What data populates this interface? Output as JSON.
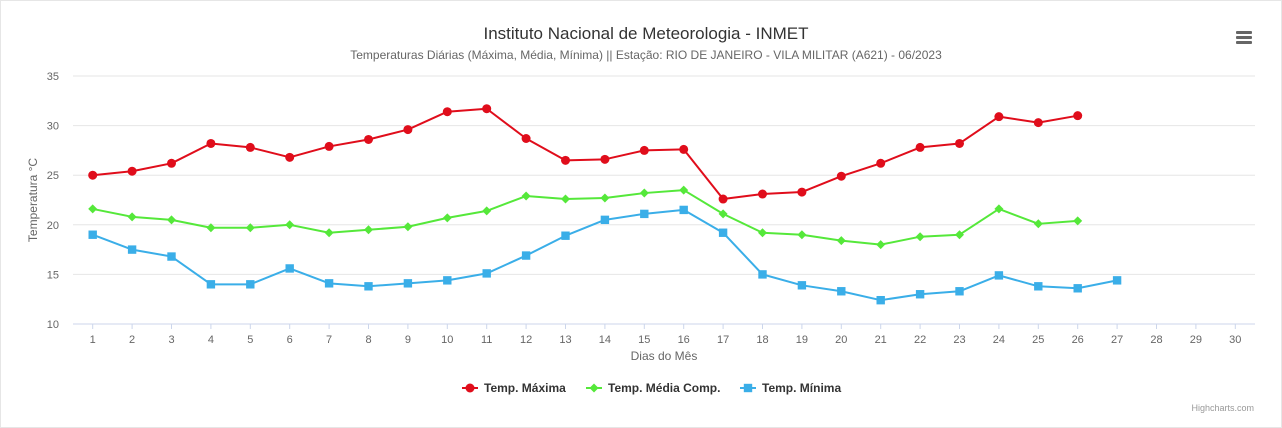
{
  "chart_data": {
    "type": "line",
    "title": "Instituto Nacional de Meteorologia - INMET",
    "subtitle": "Temperaturas Diárias (Máxima, Média, Mínima) || Estação: RIO DE JANEIRO - VILA MILITAR (A621) - 06/2023",
    "xlabel": "Dias do Mês",
    "ylabel": "Temperatura °C",
    "ylim": [
      10,
      35
    ],
    "yticks": [
      10,
      15,
      20,
      25,
      30,
      35
    ],
    "categories": [
      "1",
      "2",
      "3",
      "4",
      "5",
      "6",
      "7",
      "8",
      "9",
      "10",
      "11",
      "12",
      "13",
      "14",
      "15",
      "16",
      "17",
      "18",
      "19",
      "20",
      "21",
      "22",
      "23",
      "24",
      "25",
      "26",
      "27",
      "28",
      "29",
      "30"
    ],
    "grid": true,
    "legend_position": "bottom-center",
    "series": [
      {
        "name": "Temp. Máxima",
        "color": "#e00d1b",
        "marker": "circle",
        "values": [
          25.0,
          25.4,
          26.2,
          28.2,
          27.8,
          26.8,
          27.9,
          28.6,
          29.6,
          31.4,
          31.7,
          28.7,
          26.5,
          26.6,
          27.5,
          27.6,
          22.6,
          23.1,
          23.3,
          24.9,
          26.2,
          27.8,
          28.2,
          30.9,
          30.3,
          31.0,
          null,
          null,
          null,
          null
        ]
      },
      {
        "name": "Temp. Média Comp.",
        "color": "#55e83a",
        "marker": "diamond",
        "values": [
          21.6,
          20.8,
          20.5,
          19.7,
          19.7,
          20.0,
          19.2,
          19.5,
          19.8,
          20.7,
          21.4,
          22.9,
          22.6,
          22.7,
          23.2,
          23.5,
          21.1,
          19.2,
          19.0,
          18.4,
          18.0,
          18.8,
          19.0,
          21.6,
          20.1,
          20.4,
          null,
          null,
          null,
          null
        ]
      },
      {
        "name": "Temp. Mínima",
        "color": "#3aaee8",
        "marker": "square",
        "values": [
          19.0,
          17.5,
          16.8,
          14.0,
          14.0,
          15.6,
          14.1,
          13.8,
          14.1,
          14.4,
          15.1,
          16.9,
          18.9,
          20.5,
          21.1,
          21.5,
          19.2,
          15.0,
          13.9,
          13.3,
          12.4,
          13.0,
          13.3,
          14.9,
          13.8,
          13.6,
          14.4,
          null,
          null,
          null
        ]
      }
    ]
  },
  "ui": {
    "menu_icon": "hamburger-menu-icon",
    "credits": "Highcharts.com"
  }
}
